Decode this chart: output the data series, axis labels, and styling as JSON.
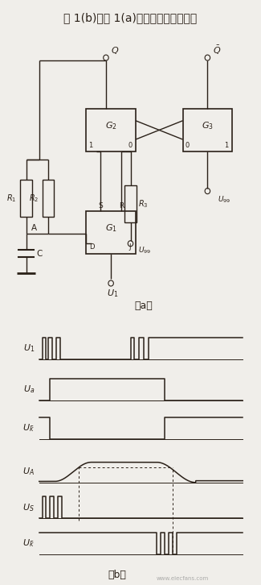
{
  "title": "图 1(b)是图 1(a)电路的工作时序图。",
  "fig_width": 3.25,
  "fig_height": 7.26,
  "dpi": 100,
  "bg_color": "#f0eeea",
  "line_color": "#2a2018",
  "circuit_label": "（a）",
  "timing_label": "（b）",
  "title_fontsize": 10,
  "signal_labels": [
    "$U_1$",
    "$U_a$",
    "$U_\\bar{k}$",
    "$U_A$",
    "$U_S$",
    "$U_\\bar{k}$"
  ],
  "watermark": "www.elecfans.com"
}
